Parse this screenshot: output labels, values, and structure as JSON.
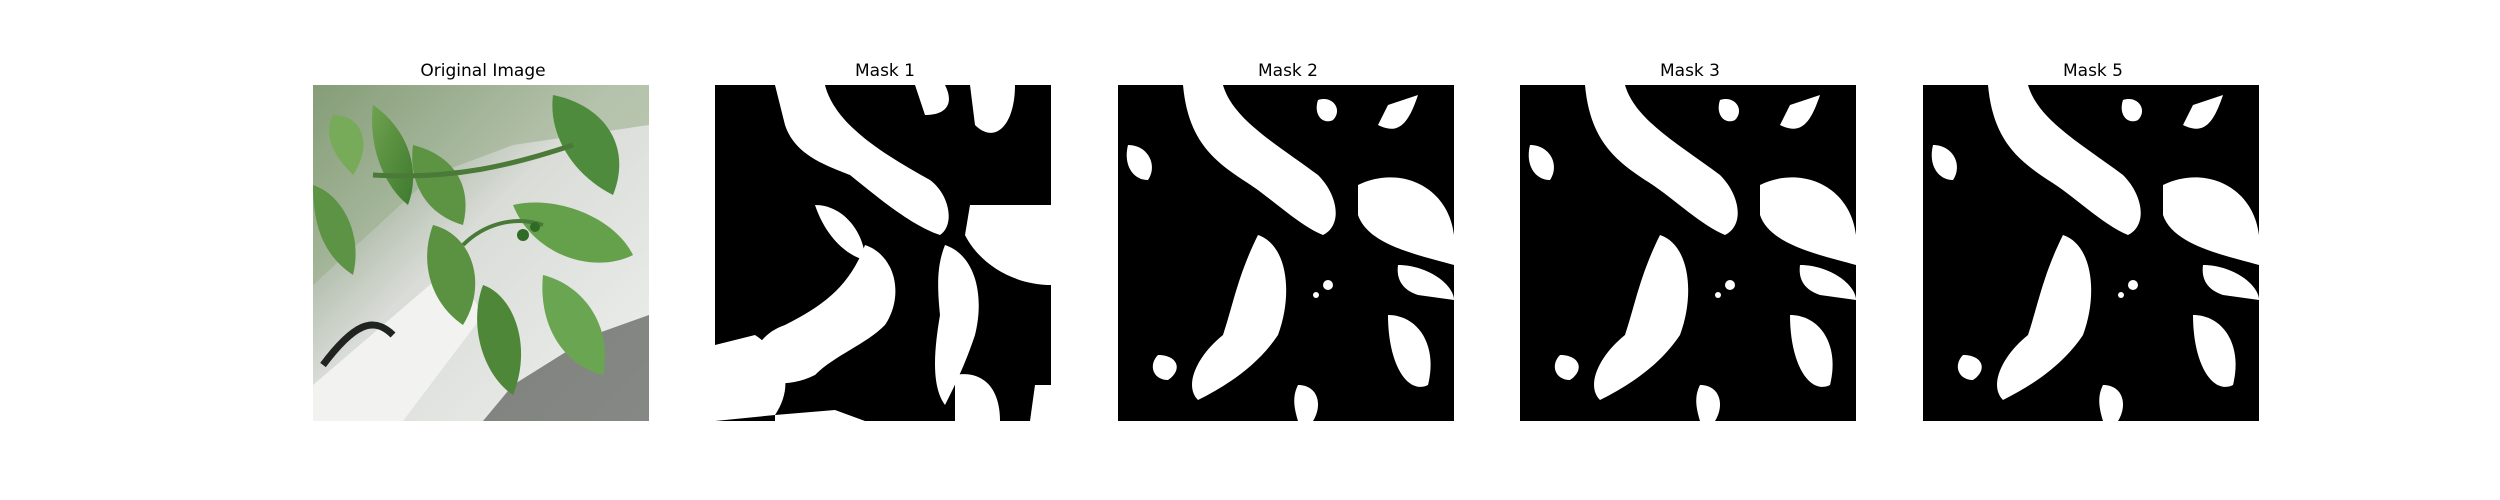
{
  "figure": {
    "panels": [
      {
        "title": "Original Image",
        "kind": "photo"
      },
      {
        "title": "Mask 1",
        "kind": "mask"
      },
      {
        "title": "Mask 2",
        "kind": "mask"
      },
      {
        "title": "Mask 3",
        "kind": "mask"
      },
      {
        "title": "Mask 5",
        "kind": "mask"
      }
    ]
  }
}
